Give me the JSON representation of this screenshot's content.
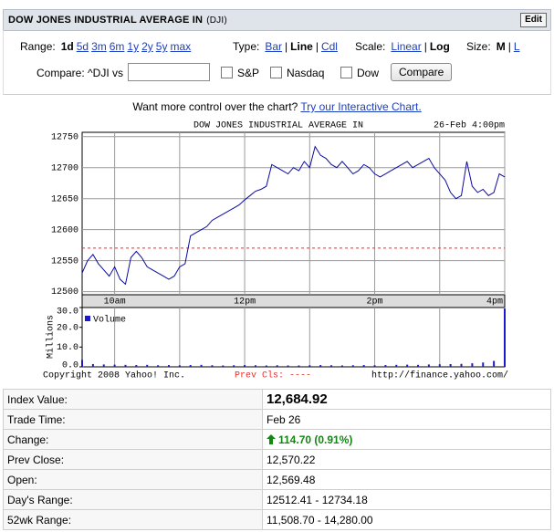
{
  "header": {
    "title": "DOW JONES INDUSTRIAL AVERAGE IN",
    "symbol": "(DJI)",
    "edit": "Edit"
  },
  "controls": {
    "separator": "|",
    "range_label": "Range:",
    "ranges": [
      "1d",
      "5d",
      "3m",
      "6m",
      "1y",
      "2y",
      "5y",
      "max"
    ],
    "range_selected": 0,
    "type_label": "Type:",
    "types": [
      "Bar",
      "Line",
      "Cdl"
    ],
    "type_selected": 1,
    "scale_label": "Scale:",
    "scales": [
      "Linear",
      "Log"
    ],
    "scale_selected": 1,
    "size_label": "Size:",
    "sizes": [
      "M",
      "L"
    ],
    "size_selected": 0,
    "compare_label": "Compare: ^DJI vs",
    "compare_options": [
      "S&P",
      "Nasdaq",
      "Dow"
    ],
    "compare_button": "Compare"
  },
  "promo": {
    "text": "Want more control over the chart?",
    "link": "Try our Interactive Chart."
  },
  "chart_data": [
    {
      "type": "line",
      "title": "DOW JONES INDUSTRIAL AVERAGE IN",
      "timestamp": "26-Feb 4:00pm",
      "x": [
        570,
        575,
        580,
        585,
        590,
        595,
        600,
        605,
        610,
        615,
        620,
        625,
        630,
        635,
        640,
        645,
        650,
        655,
        660,
        665,
        670,
        675,
        680,
        685,
        690,
        695,
        700,
        705,
        710,
        715,
        720,
        725,
        730,
        735,
        740,
        745,
        750,
        755,
        760,
        765,
        770,
        775,
        780,
        785,
        790,
        795,
        800,
        805,
        810,
        815,
        820,
        825,
        830,
        835,
        840,
        845,
        850,
        855,
        860,
        865,
        870,
        875,
        880,
        885,
        890,
        895,
        900,
        905,
        910,
        915,
        920,
        925,
        930,
        935,
        940,
        945,
        950,
        955,
        960
      ],
      "values": [
        12530,
        12550,
        12560,
        12545,
        12535,
        12525,
        12540,
        12520,
        12512,
        12555,
        12565,
        12555,
        12540,
        12535,
        12530,
        12525,
        12520,
        12525,
        12540,
        12545,
        12590,
        12595,
        12600,
        12605,
        12615,
        12620,
        12625,
        12630,
        12635,
        12640,
        12648,
        12655,
        12662,
        12665,
        12670,
        12705,
        12700,
        12695,
        12690,
        12700,
        12695,
        12710,
        12700,
        12734,
        12720,
        12715,
        12705,
        12700,
        12710,
        12700,
        12690,
        12695,
        12705,
        12700,
        12690,
        12685,
        12690,
        12695,
        12700,
        12705,
        12710,
        12700,
        12705,
        12710,
        12715,
        12700,
        12690,
        12680,
        12660,
        12650,
        12655,
        12710,
        12670,
        12660,
        12665,
        12655,
        12660,
        12690,
        12685
      ],
      "color": "#0a0aa0",
      "xlim": [
        570,
        960
      ],
      "xticks": [
        {
          "value": 600,
          "label": "10am"
        },
        {
          "value": 660,
          "label": null
        },
        {
          "value": 720,
          "label": "12pm"
        },
        {
          "value": 780,
          "label": null
        },
        {
          "value": 840,
          "label": "2pm"
        },
        {
          "value": 900,
          "label": null
        },
        {
          "value": 960,
          "label": "4pm"
        }
      ],
      "ylim": [
        12495,
        12757
      ],
      "yticks": [
        12500,
        12550,
        12600,
        12650,
        12700,
        12750
      ],
      "grid": true,
      "prev_close": 12570.22,
      "prev_close_color": "#e03030"
    },
    {
      "type": "bar",
      "y_label": "Millions",
      "x": [
        570,
        580,
        590,
        600,
        610,
        620,
        630,
        640,
        650,
        660,
        670,
        680,
        690,
        700,
        710,
        720,
        730,
        740,
        750,
        760,
        770,
        780,
        790,
        800,
        810,
        820,
        830,
        840,
        850,
        860,
        870,
        880,
        890,
        900,
        910,
        920,
        930,
        940,
        950,
        960
      ],
      "series": [
        {
          "name": "Volume",
          "color": "#1a1acc",
          "values": [
            3.5,
            1.4,
            1.2,
            1.1,
            1.0,
            0.9,
            1.0,
            0.8,
            0.9,
            0.8,
            0.9,
            1.0,
            0.8,
            0.7,
            0.8,
            0.9,
            0.8,
            0.7,
            0.8,
            0.7,
            0.7,
            0.8,
            0.9,
            0.8,
            0.7,
            0.8,
            0.9,
            0.8,
            0.9,
            1.0,
            1.1,
            1.0,
            1.2,
            1.3,
            1.4,
            1.5,
            1.8,
            2.2,
            3.0,
            29.5
          ]
        }
      ],
      "ylim": [
        0,
        30
      ],
      "yticks": [
        {
          "value": 0,
          "label": "0.0"
        },
        {
          "value": 10,
          "label": "10.0"
        },
        {
          "value": 20,
          "label": "20.0"
        },
        {
          "value": 30,
          "label": "30.0"
        }
      ]
    }
  ],
  "chart_footer": {
    "copyright": "Copyright 2008 Yahoo! Inc.",
    "prev_close_label": "Prev Cls: ----",
    "url": "http://finance.yahoo.com/"
  },
  "quote_table": {
    "rows": [
      [
        "Index Value:",
        "12,684.92"
      ],
      [
        "Trade Time:",
        "Feb 26"
      ],
      [
        "Change:",
        "114.70 (0.91%)"
      ],
      [
        "Prev Close:",
        "12,570.22"
      ],
      [
        "Open:",
        "12,569.48"
      ],
      [
        "Day's Range:",
        "12512.41 - 12734.18"
      ],
      [
        "52wk Range:",
        "11,508.70 - 14,280.00"
      ]
    ]
  }
}
